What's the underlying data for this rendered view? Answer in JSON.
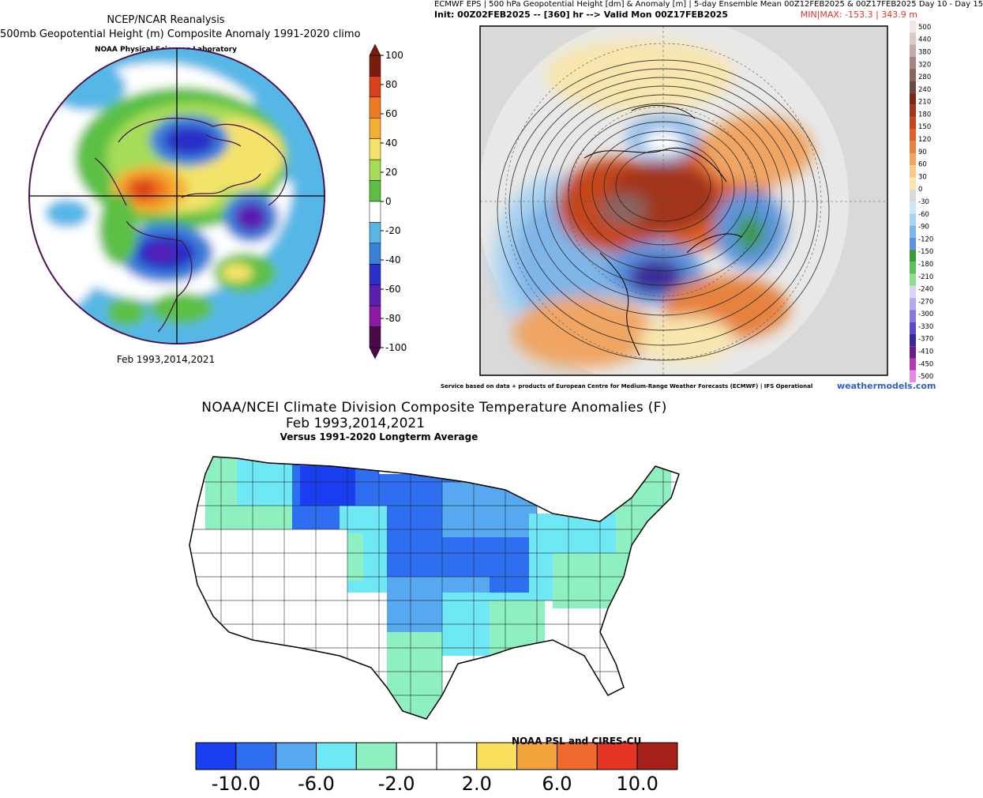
{
  "ncep_panel": {
    "title_line1": "NCEP/NCAR Reanalysis",
    "title_line2": "500mb Geopotential Height (m) Composite Anomaly 1991-2020 climo",
    "title_line3": "NOAA Physical Sciences Laboratory",
    "footer": "Feb 1993,2014,2021",
    "colorbar": {
      "tick_labels": [
        "100",
        "80",
        "60",
        "40",
        "20",
        "0",
        "-20",
        "-40",
        "-60",
        "-80",
        "-100"
      ],
      "colors": [
        "#7a1c0c",
        "#d8411c",
        "#f07a23",
        "#f4b030",
        "#f3e36a",
        "#a6dc58",
        "#5cc044",
        "#ffffff",
        "#56b7e6",
        "#3a7fd8",
        "#2c2fc8",
        "#5a1fb0",
        "#8c1aa6",
        "#4a0a4a"
      ]
    }
  },
  "ecmwf_panel": {
    "title_line1": "ECMWF EPS | 500 hPa Geopotential Height [dm] & Anomaly [m] | 5-day Ensemble Mean 00Z12FEB2025 & 00Z17FEB2025  Day 10 - Day 15",
    "title_line2": "Init: 00Z02FEB2025 -- [360] hr --> Valid Mon 00Z17FEB2025",
    "minmax": "MIN|MAX: -153.3 | 343.9 m",
    "credit": "Service based on data + products of European Centre for Medium-Range Weather Forecasts (ECMWF) | IFS Operational",
    "site": "weathermodels.com",
    "colorbar": {
      "tick_labels": [
        "500",
        "440",
        "380",
        "320",
        "280",
        "240",
        "210",
        "180",
        "150",
        "120",
        "90",
        "60",
        "30",
        "0",
        "-30",
        "-60",
        "-90",
        "-120",
        "-150",
        "-180",
        "-210",
        "-240",
        "-270",
        "-300",
        "-330",
        "-370",
        "-410",
        "-450",
        "-500"
      ],
      "colors": [
        "#f1e6e6",
        "#dccaca",
        "#c4a9a6",
        "#a88481",
        "#8a6560",
        "#6b4943",
        "#7a2a14",
        "#a2361a",
        "#c4461f",
        "#d9622c",
        "#e6823f",
        "#f0a564",
        "#f4c98b",
        "#f8e6ae",
        "#d9d9d9",
        "#cfe6f7",
        "#a8d2f1",
        "#7fb5e8",
        "#5b94dc",
        "#3a9a3a",
        "#5cc05c",
        "#8fdc8f",
        "#d8d4f4",
        "#b2aaec",
        "#8579dd",
        "#5c4ac7",
        "#3a2a99",
        "#6a1f80",
        "#b13cad",
        "#e58ae3"
      ]
    }
  },
  "noaa_panel": {
    "title_line1": "NOAA/NCEI Climate Division Composite Temperature Anomalies (F)",
    "title_line2": "Feb  1993,2014,2021",
    "title_line3": "Versus 1991-2020 Longterm Average",
    "credit": "NOAA PSL and CIRES-CU",
    "colorbar": {
      "tick_labels": [
        "-10.0",
        "-6.0",
        "-2.0",
        "2.0",
        "6.0",
        "10.0"
      ],
      "colors": [
        "#1a3ff0",
        "#2e6ef0",
        "#56a9f0",
        "#6ee8f5",
        "#8ef0c0",
        "#ffffff",
        "#ffffff",
        "#f8e05c",
        "#f3a43a",
        "#ef6a2c",
        "#e53525",
        "#a52018"
      ]
    }
  }
}
